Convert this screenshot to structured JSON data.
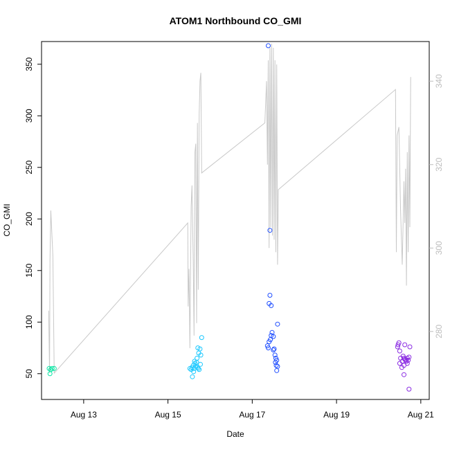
{
  "chart_data": {
    "type": "scatter",
    "title": "ATOM1 Northbound CO_GMI",
    "xlabel": "Date",
    "ylabel": "CO_GMI",
    "x_unit": "days (August 2016 day-of-month)",
    "xlim": [
      12.0,
      21.2
    ],
    "ylim": [
      25,
      372
    ],
    "x_ticks": [
      13,
      15,
      17,
      19,
      21
    ],
    "x_tick_labels": [
      "Aug 13",
      "Aug 15",
      "Aug 17",
      "Aug 19",
      "Aug 21"
    ],
    "y_ticks": [
      50,
      100,
      150,
      200,
      250,
      300,
      350
    ],
    "y_tick_labels": [
      "50",
      "100",
      "150",
      "200",
      "250",
      "300",
      "350"
    ],
    "y2lim": [
      263.7,
      349.5
    ],
    "y2_ticks": [
      280,
      300,
      320,
      340
    ],
    "y2_tick_labels": [
      "280",
      "300",
      "320",
      "340"
    ],
    "colors": {
      "line": "#c8c8c8",
      "right_axis": "#bdbdbd",
      "frame": "#000000"
    },
    "series": [
      {
        "color": "#00e5a0",
        "points": [
          [
            12.18,
            55
          ],
          [
            12.22,
            54
          ],
          [
            12.25,
            55
          ],
          [
            12.2,
            50
          ],
          [
            12.3,
            55
          ]
        ]
      },
      {
        "color": "#19c8ff",
        "points": [
          [
            15.52,
            55
          ],
          [
            15.55,
            54
          ],
          [
            15.57,
            56
          ],
          [
            15.6,
            58
          ],
          [
            15.62,
            55
          ],
          [
            15.64,
            60
          ],
          [
            15.66,
            57
          ],
          [
            15.68,
            61
          ],
          [
            15.7,
            56
          ],
          [
            15.72,
            55
          ],
          [
            15.74,
            54
          ],
          [
            15.58,
            47
          ],
          [
            15.63,
            62
          ],
          [
            15.69,
            65
          ],
          [
            15.71,
            75
          ],
          [
            15.73,
            70
          ],
          [
            15.76,
            74
          ],
          [
            15.78,
            68
          ],
          [
            15.8,
            85
          ],
          [
            15.77,
            59
          ],
          [
            15.61,
            52
          ]
        ]
      },
      {
        "color": "#1f4eff",
        "points": [
          [
            17.38,
            368
          ],
          [
            17.42,
            189
          ],
          [
            17.42,
            126
          ],
          [
            17.4,
            118
          ],
          [
            17.45,
            116
          ],
          [
            17.6,
            98
          ],
          [
            17.47,
            90
          ],
          [
            17.5,
            86
          ],
          [
            17.45,
            87
          ],
          [
            17.43,
            83
          ],
          [
            17.4,
            81
          ],
          [
            17.36,
            77
          ],
          [
            17.38,
            75
          ],
          [
            17.52,
            74
          ],
          [
            17.5,
            73
          ],
          [
            17.54,
            68
          ],
          [
            17.56,
            65
          ],
          [
            17.58,
            63
          ],
          [
            17.55,
            61
          ],
          [
            17.57,
            58
          ],
          [
            17.6,
            57
          ],
          [
            17.58,
            53
          ]
        ]
      },
      {
        "color": "#8a2be2",
        "points": [
          [
            20.46,
            78
          ],
          [
            20.48,
            80
          ],
          [
            20.45,
            76
          ],
          [
            20.5,
            72
          ],
          [
            20.52,
            65
          ],
          [
            20.5,
            60
          ],
          [
            20.55,
            56
          ],
          [
            20.58,
            67
          ],
          [
            20.6,
            65
          ],
          [
            20.62,
            64
          ],
          [
            20.64,
            63
          ],
          [
            20.66,
            62
          ],
          [
            20.68,
            65
          ],
          [
            20.7,
            63
          ],
          [
            20.72,
            66
          ],
          [
            20.6,
            58
          ],
          [
            20.56,
            62
          ],
          [
            20.62,
            78
          ],
          [
            20.74,
            76
          ],
          [
            20.68,
            60
          ],
          [
            20.6,
            49
          ],
          [
            20.72,
            35
          ]
        ]
      }
    ],
    "line_series": {
      "axis": "right",
      "points": [
        [
          12.17,
          285
        ],
        [
          12.19,
          270
        ],
        [
          12.2,
          297
        ],
        [
          12.22,
          309
        ],
        [
          12.27,
          298
        ],
        [
          12.3,
          270
        ],
        [
          15.47,
          306
        ],
        [
          15.48,
          286
        ],
        [
          15.5,
          295
        ],
        [
          15.52,
          276
        ],
        [
          15.55,
          310
        ],
        [
          15.57,
          315
        ],
        [
          15.6,
          297
        ],
        [
          15.62,
          279
        ],
        [
          15.64,
          323
        ],
        [
          15.66,
          325
        ],
        [
          15.68,
          282
        ],
        [
          15.7,
          330
        ],
        [
          15.72,
          290
        ],
        [
          15.74,
          332
        ],
        [
          15.76,
          340
        ],
        [
          15.78,
          342
        ],
        [
          15.8,
          318
        ],
        [
          17.3,
          330
        ],
        [
          17.34,
          340
        ],
        [
          17.36,
          320
        ],
        [
          17.38,
          345
        ],
        [
          17.4,
          300
        ],
        [
          17.42,
          348
        ],
        [
          17.44,
          305
        ],
        [
          17.46,
          349
        ],
        [
          17.48,
          303
        ],
        [
          17.5,
          348
        ],
        [
          17.52,
          302
        ],
        [
          17.54,
          345
        ],
        [
          17.56,
          299
        ],
        [
          17.58,
          344
        ],
        [
          17.6,
          296
        ],
        [
          17.62,
          314
        ],
        [
          20.4,
          338
        ],
        [
          20.42,
          299
        ],
        [
          20.44,
          327
        ],
        [
          20.48,
          329
        ],
        [
          20.52,
          309
        ],
        [
          20.56,
          296
        ],
        [
          20.6,
          316
        ],
        [
          20.62,
          306
        ],
        [
          20.64,
          319
        ],
        [
          20.66,
          291
        ],
        [
          20.68,
          323
        ],
        [
          20.7,
          299
        ],
        [
          20.72,
          327
        ],
        [
          20.74,
          305
        ],
        [
          20.76,
          341
        ]
      ]
    }
  }
}
